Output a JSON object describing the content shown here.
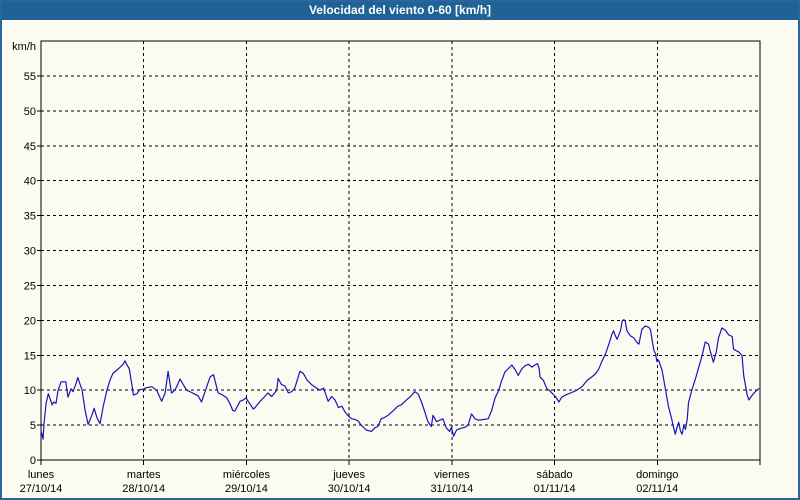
{
  "window": {
    "title": "Velocidad del viento 0-60 [km/h]"
  },
  "colors": {
    "title_bar_bg": "#1e6394",
    "title_text": "#ffffff",
    "frame_border": "#2a65a0",
    "background": "#fbfbf2",
    "plot_border": "#000000",
    "gridline": "#000000",
    "tick_label_text": "#000000",
    "series_line": "#1717b8"
  },
  "chart_data": {
    "type": "line",
    "title": "Velocidad del viento 0-60 [km/h]",
    "xlabel": "",
    "ylabel": "km/h",
    "ylim": [
      0,
      60
    ],
    "xlim_hours": [
      0,
      168
    ],
    "grid": "dashed",
    "legend_position": "none",
    "y_ticks": [
      0,
      5,
      10,
      15,
      20,
      25,
      30,
      35,
      40,
      45,
      50,
      55
    ],
    "x_days": [
      {
        "name": "lunes",
        "date": "27/10/14",
        "hour": 0
      },
      {
        "name": "martes",
        "date": "28/10/14",
        "hour": 24
      },
      {
        "name": "miércoles",
        "date": "29/10/14",
        "hour": 48
      },
      {
        "name": "jueves",
        "date": "30/10/14",
        "hour": 72
      },
      {
        "name": "viernes",
        "date": "31/10/14",
        "hour": 96
      },
      {
        "name": "sábado",
        "date": "01/11/14",
        "hour": 120
      },
      {
        "name": "domingo",
        "date": "02/11/14",
        "hour": 144
      }
    ],
    "series": [
      {
        "name": "Velocidad del viento",
        "units": "km/h",
        "points": [
          [
            0,
            4.2
          ],
          [
            0.5,
            3.0
          ],
          [
            0.7,
            5.2
          ],
          [
            1.2,
            8.1
          ],
          [
            1.7,
            9.5
          ],
          [
            2.1,
            8.8
          ],
          [
            2.6,
            7.9
          ],
          [
            3,
            8.3
          ],
          [
            3.5,
            8.1
          ],
          [
            4,
            10
          ],
          [
            4.7,
            11.2
          ],
          [
            5.8,
            11.2
          ],
          [
            6.3,
            9.0
          ],
          [
            7,
            10.2
          ],
          [
            7.5,
            9.8
          ],
          [
            8.2,
            11
          ],
          [
            8.6,
            11.8
          ],
          [
            9.6,
            10
          ],
          [
            10.3,
            7.1
          ],
          [
            11,
            5.1
          ],
          [
            11.9,
            6.4
          ],
          [
            12.4,
            7.4
          ],
          [
            13.1,
            6.0
          ],
          [
            13.8,
            5.2
          ],
          [
            14.5,
            7.6
          ],
          [
            15.4,
            10
          ],
          [
            16.1,
            11.4
          ],
          [
            16.8,
            12.4
          ],
          [
            17.8,
            12.9
          ],
          [
            18.5,
            13.3
          ],
          [
            19.2,
            13.7
          ],
          [
            19.6,
            14.2
          ],
          [
            20.1,
            13.6
          ],
          [
            20.6,
            13.1
          ],
          [
            21.3,
            10.5
          ],
          [
            21.6,
            9.3
          ],
          [
            22.4,
            9.5
          ],
          [
            23.1,
            10.1
          ],
          [
            23.9,
            10.1
          ],
          [
            24.3,
            10.3
          ],
          [
            25.9,
            10.5
          ],
          [
            27,
            10
          ],
          [
            28.2,
            8.4
          ],
          [
            29,
            9.6
          ],
          [
            29.7,
            12.7
          ],
          [
            30.5,
            9.6
          ],
          [
            31.3,
            10
          ],
          [
            32.5,
            11.6
          ],
          [
            34,
            10
          ],
          [
            34.8,
            9.8
          ],
          [
            36.7,
            9.2
          ],
          [
            37.5,
            8.3
          ],
          [
            39.5,
            11.9
          ],
          [
            40.3,
            12.2
          ],
          [
            41.4,
            9.6
          ],
          [
            42.2,
            9.4
          ],
          [
            43.4,
            8.9
          ],
          [
            44.2,
            8.0
          ],
          [
            44.8,
            7.1
          ],
          [
            45.3,
            7.0
          ],
          [
            46.5,
            8.4
          ],
          [
            47.3,
            8.6
          ],
          [
            47.9,
            8.9
          ],
          [
            48.4,
            8.4
          ],
          [
            49.6,
            7.3
          ],
          [
            50,
            7.5
          ],
          [
            51.2,
            8.4
          ],
          [
            52.3,
            9.1
          ],
          [
            53,
            9.6
          ],
          [
            53.9,
            9.1
          ],
          [
            55.1,
            10
          ],
          [
            55.4,
            11.7
          ],
          [
            56.2,
            10.8
          ],
          [
            57,
            10.6
          ],
          [
            57.8,
            9.6
          ],
          [
            58.6,
            9.8
          ],
          [
            59.3,
            10.3
          ],
          [
            60.5,
            12.7
          ],
          [
            61.3,
            12.4
          ],
          [
            62.1,
            11.5
          ],
          [
            63.2,
            10.8
          ],
          [
            64.4,
            10.3
          ],
          [
            65.2,
            10
          ],
          [
            66,
            10.3
          ],
          [
            67.1,
            8.4
          ],
          [
            67.9,
            9.1
          ],
          [
            68.7,
            8.6
          ],
          [
            69.5,
            7.5
          ],
          [
            70.3,
            7.7
          ],
          [
            71,
            6.9
          ],
          [
            71.8,
            6.3
          ],
          [
            72.6,
            5.9
          ],
          [
            73.4,
            5.8
          ],
          [
            74.1,
            5.6
          ],
          [
            74.8,
            5.0
          ],
          [
            76,
            4.3
          ],
          [
            77.2,
            4.1
          ],
          [
            78,
            4.6
          ],
          [
            78.7,
            4.8
          ],
          [
            79.5,
            5.9
          ],
          [
            80.3,
            6.1
          ],
          [
            81.1,
            6.4
          ],
          [
            82.2,
            7.0
          ],
          [
            83.4,
            7.7
          ],
          [
            84.2,
            7.9
          ],
          [
            85.4,
            8.6
          ],
          [
            86.5,
            9.2
          ],
          [
            87.3,
            9.8
          ],
          [
            88.1,
            9.5
          ],
          [
            88.9,
            8.3
          ],
          [
            89.6,
            7.0
          ],
          [
            90.4,
            5.5
          ],
          [
            91.2,
            4.8
          ],
          [
            91.6,
            6.4
          ],
          [
            92.4,
            5.5
          ],
          [
            93.2,
            5.7
          ],
          [
            93.9,
            5.9
          ],
          [
            94.7,
            4.6
          ],
          [
            95.5,
            4.1
          ],
          [
            95.9,
            4.7
          ],
          [
            96.4,
            3.4
          ],
          [
            97.1,
            4.3
          ],
          [
            97.9,
            4.5
          ],
          [
            99.1,
            4.7
          ],
          [
            99.8,
            5.0
          ],
          [
            100.6,
            6.6
          ],
          [
            101.4,
            5.9
          ],
          [
            102.2,
            5.7
          ],
          [
            103.4,
            5.8
          ],
          [
            104.5,
            5.9
          ],
          [
            105.3,
            7.1
          ],
          [
            106.1,
            8.9
          ],
          [
            106.9,
            9.9
          ],
          [
            107.6,
            11.3
          ],
          [
            108.4,
            12.6
          ],
          [
            109.2,
            13.1
          ],
          [
            110,
            13.6
          ],
          [
            110.8,
            12.9
          ],
          [
            111.5,
            12.1
          ],
          [
            112.3,
            13.0
          ],
          [
            113.1,
            13.5
          ],
          [
            113.9,
            13.7
          ],
          [
            114.7,
            13.3
          ],
          [
            115.4,
            13.6
          ],
          [
            116,
            13.8
          ],
          [
            116.4,
            13.1
          ],
          [
            116.6,
            11.9
          ],
          [
            117.4,
            11.4
          ],
          [
            118.2,
            10.2
          ],
          [
            118.9,
            9.9
          ],
          [
            119.7,
            9.4
          ],
          [
            120.2,
            9.1
          ],
          [
            121,
            8.3
          ],
          [
            121.7,
            9.0
          ],
          [
            122.5,
            9.3
          ],
          [
            123.7,
            9.6
          ],
          [
            124.5,
            9.8
          ],
          [
            125.2,
            10
          ],
          [
            126.4,
            10.5
          ],
          [
            127.6,
            11.4
          ],
          [
            128.7,
            11.9
          ],
          [
            129.5,
            12.3
          ],
          [
            130.3,
            13
          ],
          [
            131.1,
            14.2
          ],
          [
            131.9,
            15.2
          ],
          [
            132.7,
            16.6
          ],
          [
            133.4,
            18
          ],
          [
            133.8,
            18.5
          ],
          [
            134.2,
            17.8
          ],
          [
            134.6,
            17.3
          ],
          [
            135.4,
            18.5
          ],
          [
            135.8,
            19.9
          ],
          [
            136.2,
            20.1
          ],
          [
            136.5,
            19.9
          ],
          [
            136.9,
            18.5
          ],
          [
            137.7,
            17.8
          ],
          [
            138.5,
            17.5
          ],
          [
            139.3,
            16.8
          ],
          [
            139.7,
            16.6
          ],
          [
            140.4,
            18.7
          ],
          [
            141.2,
            19.2
          ],
          [
            142,
            19
          ],
          [
            142.4,
            18.7
          ],
          [
            142.8,
            17.1
          ],
          [
            143.2,
            15.7
          ],
          [
            143.6,
            15.2
          ],
          [
            143.9,
            14.1
          ],
          [
            144.3,
            14.3
          ],
          [
            144.7,
            13.6
          ],
          [
            145.1,
            12.9
          ],
          [
            145.8,
            10.5
          ],
          [
            146.6,
            7.7
          ],
          [
            147.4,
            5.8
          ],
          [
            147.8,
            4.7
          ],
          [
            148.2,
            3.7
          ],
          [
            148.6,
            4.7
          ],
          [
            149,
            5.4
          ],
          [
            149.4,
            4.2
          ],
          [
            149.8,
            3.7
          ],
          [
            150.2,
            4.9
          ],
          [
            150.6,
            4.4
          ],
          [
            151,
            5.8
          ],
          [
            151.3,
            8.2
          ],
          [
            152.1,
            10.1
          ],
          [
            152.9,
            11.6
          ],
          [
            153.7,
            13.3
          ],
          [
            154.5,
            15
          ],
          [
            155.2,
            16.9
          ],
          [
            156,
            16.6
          ],
          [
            156.4,
            15.5
          ],
          [
            157.1,
            14
          ],
          [
            157.8,
            15.5
          ],
          [
            158.3,
            17.5
          ],
          [
            159.1,
            18.9
          ],
          [
            159.9,
            18.6
          ],
          [
            160.7,
            17.9
          ],
          [
            161.5,
            17.7
          ],
          [
            161.8,
            15.9
          ],
          [
            162.6,
            15.6
          ],
          [
            163,
            15.5
          ],
          [
            163.8,
            15
          ],
          [
            164.2,
            12.1
          ],
          [
            165,
            9.3
          ],
          [
            165.4,
            8.6
          ],
          [
            166.2,
            9.3
          ],
          [
            166.9,
            9.8
          ],
          [
            167.7,
            10.2
          ]
        ]
      }
    ]
  }
}
